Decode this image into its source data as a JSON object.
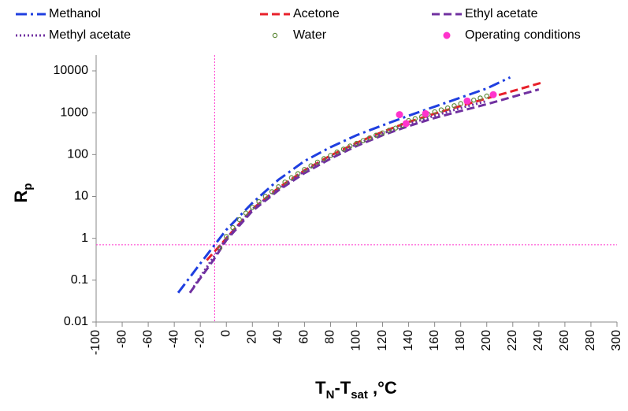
{
  "chart_data": {
    "type": "line",
    "log_y": true,
    "xlabel_parts": [
      {
        "text": "T",
        "sub": false
      },
      {
        "text": "N",
        "sub": true
      },
      {
        "text": "-T",
        "sub": false
      },
      {
        "text": "sat",
        "sub": true
      },
      {
        "text": " ,°C",
        "sub": false
      }
    ],
    "ylabel_parts": [
      {
        "text": "R",
        "sub": false
      },
      {
        "text": "p",
        "sub": true
      }
    ],
    "xlim": [
      -100,
      300
    ],
    "ylim": [
      0.01,
      10000
    ],
    "xticks": [
      -100,
      -80,
      -60,
      -40,
      -20,
      0,
      20,
      40,
      60,
      80,
      100,
      120,
      140,
      160,
      180,
      200,
      220,
      240,
      260,
      280,
      300
    ],
    "yticks": [
      0.01,
      0.1,
      1,
      10,
      100,
      1000,
      10000
    ],
    "ref_vline": -9,
    "ref_hline": 0.7,
    "ref_color": "#ff33cc",
    "series": [
      {
        "name": "Methanol",
        "color": "#1f3fe0",
        "style": "dash-dot",
        "x": [
          -37,
          -20,
          0,
          20,
          40,
          60,
          80,
          100,
          120,
          140,
          160,
          180,
          200,
          218
        ],
        "values": [
          0.05,
          0.25,
          1.6,
          7,
          25,
          70,
          150,
          290,
          500,
          850,
          1400,
          2300,
          3800,
          7000
        ]
      },
      {
        "name": "Acetone",
        "color": "#e8202a",
        "style": "dash",
        "x": [
          -15,
          0,
          20,
          40,
          60,
          80,
          100,
          120,
          140,
          160,
          180,
          200,
          220,
          242
        ],
        "values": [
          0.3,
          1,
          5,
          16,
          42,
          95,
          190,
          350,
          600,
          950,
          1450,
          2200,
          3300,
          5200
        ]
      },
      {
        "name": "Ethyl acetate",
        "color": "#7030a0",
        "style": "dash",
        "x": [
          -28,
          -10,
          0,
          20,
          40,
          60,
          80,
          100,
          120,
          140,
          160,
          180,
          200,
          220,
          240
        ],
        "values": [
          0.05,
          0.3,
          0.9,
          4.5,
          14,
          36,
          80,
          160,
          290,
          480,
          750,
          1100,
          1600,
          2400,
          3600
        ]
      },
      {
        "name": "Methyl acetate",
        "color": "#7030a0",
        "style": "dot",
        "x": [
          -25,
          -10,
          0,
          20,
          40,
          60,
          80,
          100,
          120,
          140,
          160,
          180,
          200
        ],
        "values": [
          0.07,
          0.35,
          1,
          5,
          15,
          40,
          88,
          175,
          320,
          540,
          850,
          1300,
          1900
        ]
      },
      {
        "name": "Water",
        "color": "#5f8a3a",
        "style": "hollow-markers",
        "x": [
          -5,
          0,
          5,
          10,
          15,
          20,
          25,
          30,
          35,
          40,
          45,
          50,
          55,
          60,
          65,
          70,
          75,
          80,
          85,
          90,
          95,
          100,
          105,
          110,
          115,
          120,
          125,
          130,
          135,
          140,
          145,
          150,
          155,
          160,
          165,
          170,
          175,
          180,
          185,
          190,
          195,
          200,
          205
        ],
        "values": [
          0.6,
          1.1,
          1.8,
          2.8,
          4,
          5.5,
          7.5,
          10,
          13,
          17,
          22,
          28,
          35,
          44,
          54,
          66,
          80,
          95,
          115,
          135,
          160,
          185,
          215,
          250,
          290,
          330,
          380,
          430,
          500,
          650,
          720,
          800,
          920,
          1050,
          1170,
          1300,
          1470,
          1650,
          1820,
          2000,
          2250,
          2500,
          2750
        ]
      },
      {
        "name": "Operating conditions",
        "color": "#ff33cc",
        "style": "filled-markers",
        "x": [
          133,
          138,
          153,
          185,
          205
        ],
        "values": [
          900,
          550,
          950,
          1900,
          2700
        ]
      }
    ]
  }
}
